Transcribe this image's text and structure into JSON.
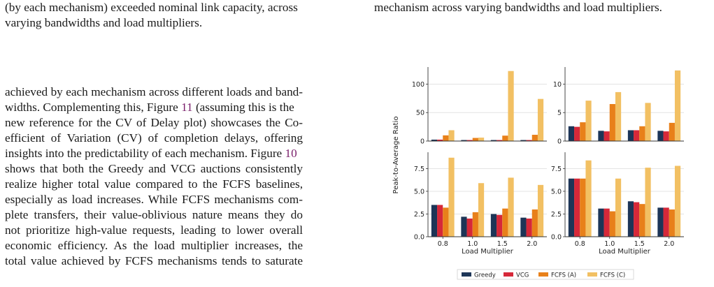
{
  "left_caption": {
    "line1": "(by each mechanism) exceeded nominal link capacity, across",
    "line2": "varying bandwidths and load multipliers."
  },
  "right_caption": {
    "line1": "mechanism across varying bandwidths and load multipliers."
  },
  "body_paragraph": {
    "l1": "achieved by each mechanism across different loads and band-",
    "l2a": "widths. Complementing this, Figure ",
    "l2ref": "11",
    "l2b": " (assuming this is the",
    "l3": "new reference for the CV of Delay plot) showcases the Co-",
    "l4": "efficient of Variation (CV) of completion delays, offering",
    "l5a": "insights into the predictability of each mechanism. Figure ",
    "l5ref": "10",
    "l6": "shows that both the Greedy and VCG auctions consistently",
    "l7": "realize higher total value compared to the FCFS baselines,",
    "l8": "especially as load increases. While FCFS mechanisms com-",
    "l9": "plete transfers, their value-oblivious nature means they do",
    "l10": "not prioritize high-value requests, leading to lower overall",
    "l11": "economic efficiency. As the load multiplier increases, the",
    "l12": "total value achieved by FCFS mechanisms tends to saturate"
  },
  "chart_data": {
    "type": "bar",
    "ylabel": "Peak-to-Average Ratio",
    "xlabel": "Load Multiplier",
    "categories": [
      "0.8",
      "1.0",
      "1.5",
      "2.0"
    ],
    "colors": [
      "#1d3557",
      "#d62839",
      "#e8801a",
      "#f2c063"
    ],
    "legend": [
      "Greedy",
      "VCG",
      "FCFS (A)",
      "FCFS (C)"
    ],
    "legend_position": "bottom-center",
    "panels": [
      {
        "ylim": [
          0,
          130
        ],
        "yticks": [
          0,
          50,
          100
        ],
        "series": [
          {
            "name": "Greedy",
            "values": [
              2.5,
              1.8,
              1.8,
              1.8
            ]
          },
          {
            "name": "VCG",
            "values": [
              2.5,
              1.8,
              1.8,
              1.8
            ]
          },
          {
            "name": "FCFS (A)",
            "values": [
              10,
              5.5,
              9.5,
              11
            ]
          },
          {
            "name": "FCFS (C)",
            "values": [
              19,
              6,
              123,
              74
            ]
          }
        ]
      },
      {
        "ylim": [
          0,
          13
        ],
        "yticks": [
          0,
          5,
          10
        ],
        "series": [
          {
            "name": "Greedy",
            "values": [
              2.6,
              1.8,
              1.9,
              1.8
            ]
          },
          {
            "name": "VCG",
            "values": [
              2.5,
              1.7,
              1.9,
              1.7
            ]
          },
          {
            "name": "FCFS (A)",
            "values": [
              3.3,
              6.5,
              2.6,
              3.2
            ]
          },
          {
            "name": "FCFS (C)",
            "values": [
              7.1,
              8.6,
              6.7,
              12.4
            ]
          }
        ]
      },
      {
        "ylim": [
          0,
          9.3
        ],
        "yticks": [
          0.0,
          2.5,
          5.0,
          7.5
        ],
        "series": [
          {
            "name": "Greedy",
            "values": [
              3.5,
              2.2,
              2.5,
              2.1
            ]
          },
          {
            "name": "VCG",
            "values": [
              3.5,
              2.0,
              2.4,
              2.0
            ]
          },
          {
            "name": "FCFS (A)",
            "values": [
              3.2,
              2.7,
              3.1,
              3.0
            ]
          },
          {
            "name": "FCFS (C)",
            "values": [
              8.7,
              5.9,
              6.5,
              5.7
            ]
          }
        ]
      },
      {
        "ylim": [
          0,
          9.3
        ],
        "yticks": [
          0.0,
          2.5,
          5.0,
          7.5
        ],
        "series": [
          {
            "name": "Greedy",
            "values": [
              6.4,
              3.1,
              3.9,
              3.2
            ]
          },
          {
            "name": "VCG",
            "values": [
              6.4,
              3.1,
              3.8,
              3.2
            ]
          },
          {
            "name": "FCFS (A)",
            "values": [
              6.4,
              2.8,
              3.6,
              3.0
            ]
          },
          {
            "name": "FCFS (C)",
            "values": [
              8.4,
              6.4,
              7.6,
              7.8
            ]
          }
        ]
      }
    ]
  }
}
